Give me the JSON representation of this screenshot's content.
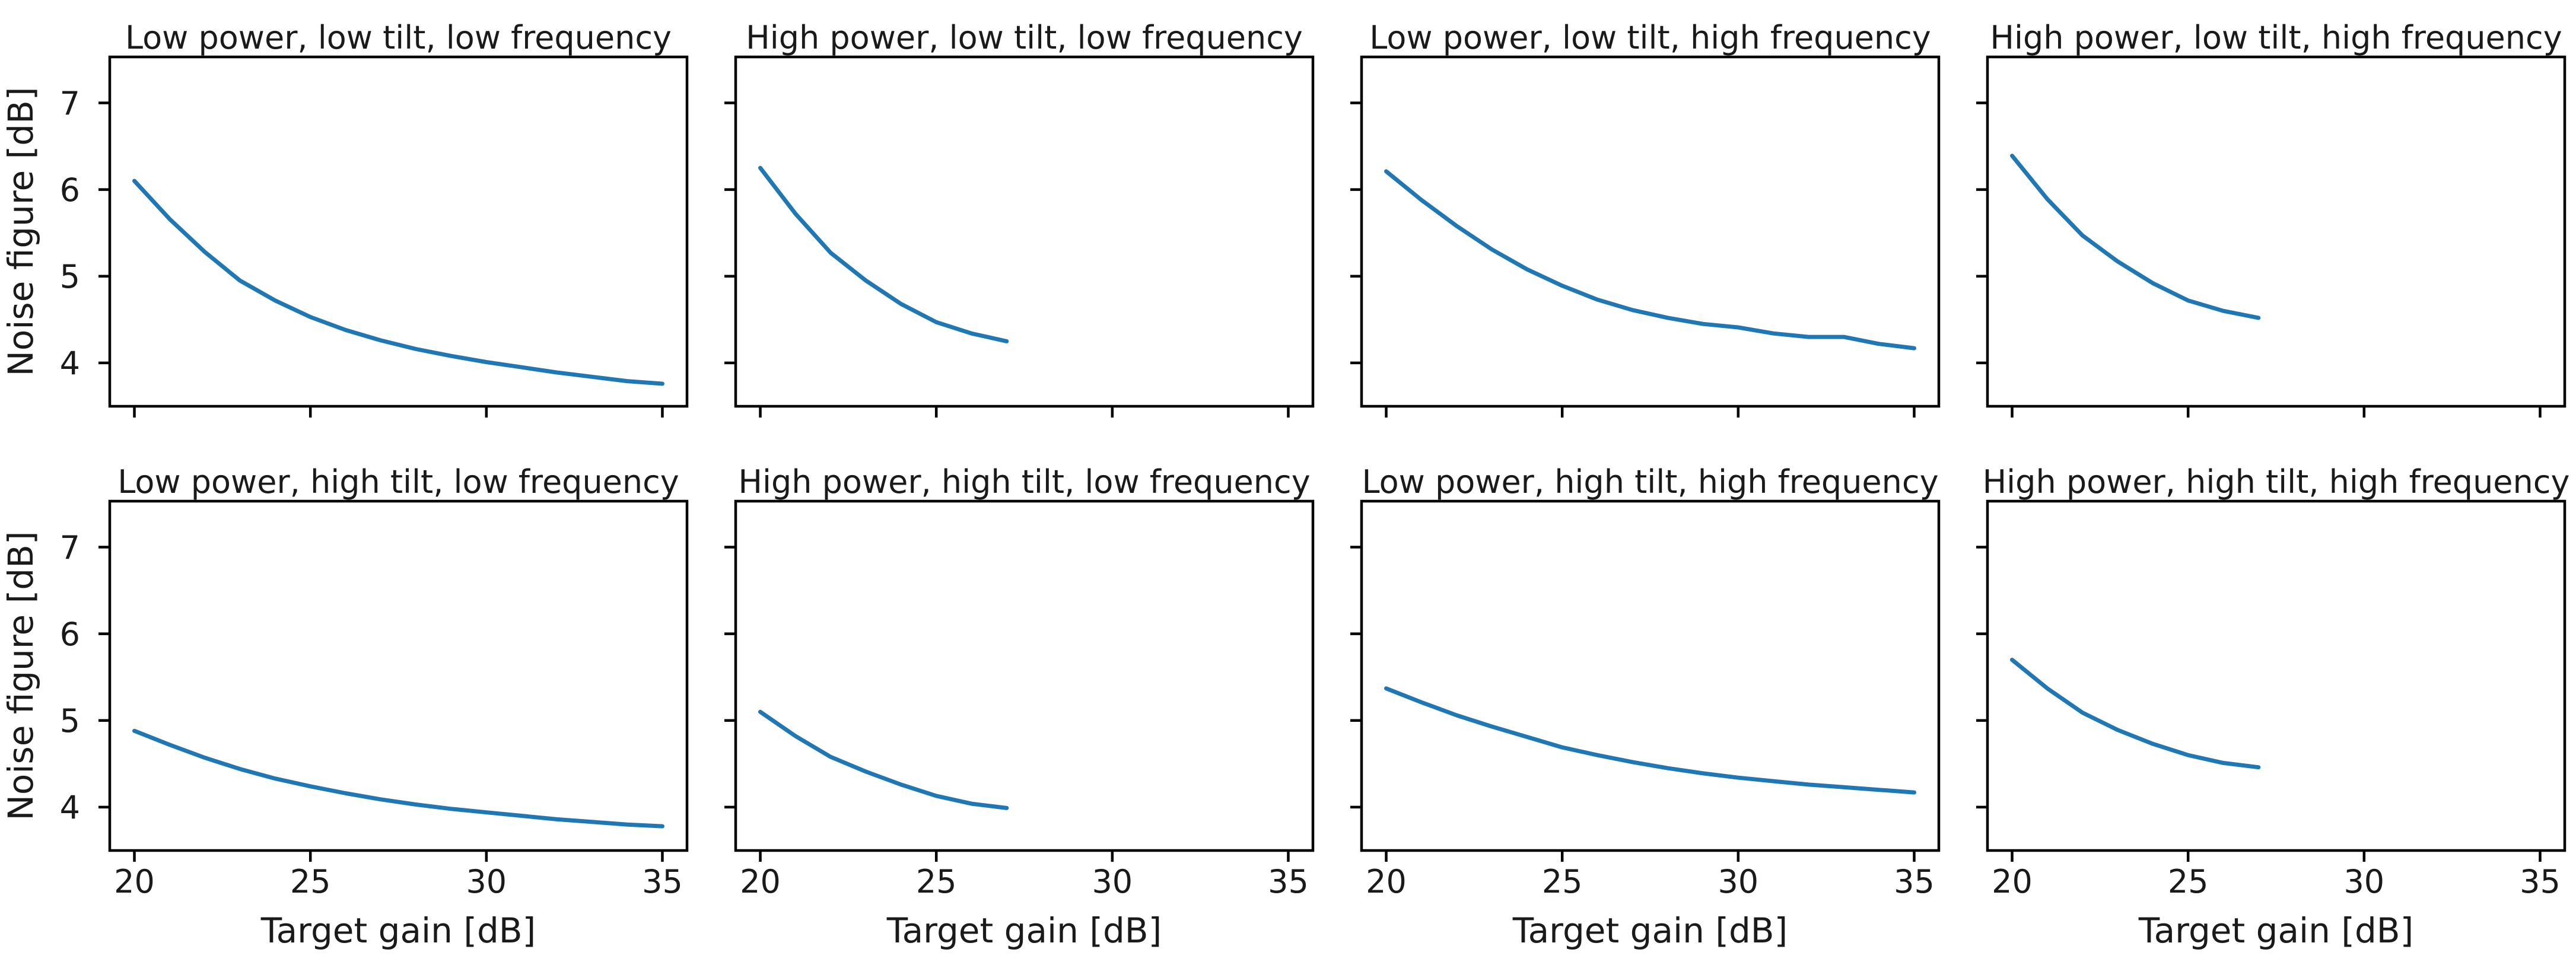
{
  "figure": {
    "background": "#ffffff",
    "description": "2x4 grid of noise-figure vs target-gain line plots"
  },
  "chart_data": {
    "type": "line",
    "grid": false,
    "legend": "none",
    "shared": {
      "xlabel": "Target gain [dB]",
      "ylabel": "Noise figure [dB]",
      "xlim": [
        19.3,
        35.7
      ],
      "ylim": [
        3.5,
        7.53
      ],
      "xticks": [
        20,
        25,
        30,
        35
      ],
      "yticks": [
        4,
        5,
        6,
        7
      ],
      "line_color": "#1f77b4",
      "text_color": "#1a1a1a",
      "spine_color": "#000000"
    },
    "subplots": [
      {
        "row": 0,
        "col": 0,
        "title": "Low power, low tilt, low frequency",
        "x": [
          20,
          21,
          22,
          23,
          24,
          25,
          26,
          27,
          28,
          29,
          30,
          31,
          32,
          33,
          34,
          35
        ],
        "y": [
          6.1,
          5.66,
          5.28,
          4.95,
          4.72,
          4.53,
          4.38,
          4.26,
          4.16,
          4.08,
          4.01,
          3.95,
          3.89,
          3.84,
          3.79,
          3.76
        ]
      },
      {
        "row": 0,
        "col": 1,
        "title": "High power, low tilt, low frequency",
        "x": [
          20,
          21,
          22,
          23,
          24,
          25,
          26,
          27
        ],
        "y": [
          6.25,
          5.72,
          5.27,
          4.95,
          4.68,
          4.47,
          4.34,
          4.25
        ]
      },
      {
        "row": 0,
        "col": 2,
        "title": "Low power, low tilt, high frequency",
        "x": [
          20,
          21,
          22,
          23,
          24,
          25,
          26,
          27,
          28,
          29,
          30,
          31,
          32,
          33,
          34,
          35
        ],
        "y": [
          6.21,
          5.88,
          5.58,
          5.31,
          5.08,
          4.89,
          4.73,
          4.61,
          4.52,
          4.45,
          4.41,
          4.34,
          4.3,
          4.3,
          4.22,
          4.17
        ]
      },
      {
        "row": 0,
        "col": 3,
        "title": "High power, low tilt, high frequency",
        "x": [
          20,
          21,
          22,
          23,
          24,
          25,
          26,
          27
        ],
        "y": [
          6.39,
          5.89,
          5.47,
          5.17,
          4.92,
          4.72,
          4.6,
          4.52
        ]
      },
      {
        "row": 1,
        "col": 0,
        "title": "Low power, high tilt, low frequency",
        "x": [
          20,
          21,
          22,
          23,
          24,
          25,
          26,
          27,
          28,
          29,
          30,
          31,
          32,
          33,
          34,
          35
        ],
        "y": [
          4.88,
          4.72,
          4.57,
          4.44,
          4.33,
          4.24,
          4.16,
          4.09,
          4.03,
          3.98,
          3.94,
          3.9,
          3.86,
          3.83,
          3.8,
          3.78
        ]
      },
      {
        "row": 1,
        "col": 1,
        "title": "High power, high tilt, low frequency",
        "x": [
          20,
          21,
          22,
          23,
          24,
          25,
          26,
          27
        ],
        "y": [
          5.1,
          4.82,
          4.58,
          4.41,
          4.26,
          4.13,
          4.04,
          3.99
        ]
      },
      {
        "row": 1,
        "col": 2,
        "title": "Low power, high tilt, high frequency",
        "x": [
          20,
          21,
          22,
          23,
          24,
          25,
          26,
          27,
          28,
          29,
          30,
          31,
          32,
          33,
          34,
          35
        ],
        "y": [
          5.37,
          5.21,
          5.06,
          4.93,
          4.81,
          4.69,
          4.6,
          4.52,
          4.45,
          4.39,
          4.34,
          4.3,
          4.26,
          4.23,
          4.2,
          4.17
        ]
      },
      {
        "row": 1,
        "col": 3,
        "title": "High power, high tilt, high frequency",
        "x": [
          20,
          21,
          22,
          23,
          24,
          25,
          26,
          27
        ],
        "y": [
          5.7,
          5.37,
          5.09,
          4.89,
          4.73,
          4.6,
          4.51,
          4.46
        ]
      }
    ]
  }
}
